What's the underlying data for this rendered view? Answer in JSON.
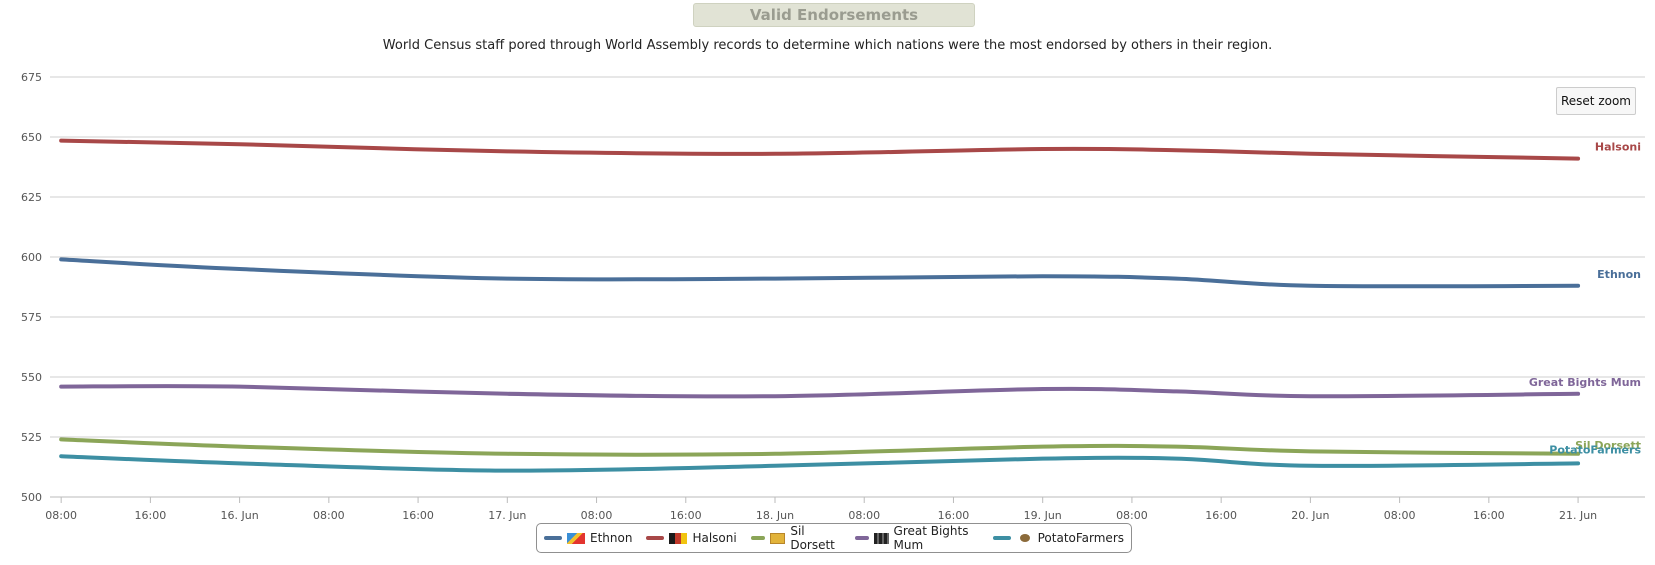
{
  "chart_data": {
    "type": "line",
    "title": "Valid Endorsements",
    "subtitle": "World Census staff pored through World Assembly records to determine which nations were the most endorsed by others in their region.",
    "xlabel": "",
    "ylabel": "",
    "x_tick_labels": [
      "08:00",
      "16:00",
      "16. Jun",
      "08:00",
      "16:00",
      "17. Jun",
      "08:00",
      "16:00",
      "18. Jun",
      "08:00",
      "16:00",
      "19. Jun",
      "08:00",
      "16:00",
      "20. Jun",
      "08:00",
      "16:00",
      "21. Jun"
    ],
    "x": [
      "2024-06-15 08:00",
      "2024-06-16 00:00",
      "2024-06-17 00:00",
      "2024-06-18 00:00",
      "2024-06-19 00:00",
      "2024-06-19 12:00",
      "2024-06-20 00:00",
      "2024-06-21 00:00"
    ],
    "xlim": [
      "2024-06-15 07:00",
      "2024-06-21 06:00"
    ],
    "ylim": [
      500,
      675
    ],
    "y_ticks": [
      500,
      525,
      550,
      575,
      600,
      625,
      650,
      675
    ],
    "grid": true,
    "legend": "bottom",
    "series": [
      {
        "name": "Ethnon",
        "color": "#4a6f99",
        "values": [
          599,
          595,
          591,
          591,
          592,
          591,
          588,
          588
        ]
      },
      {
        "name": "Halsoni",
        "color": "#a84848",
        "values": [
          648.5,
          647,
          644,
          643,
          645,
          644.5,
          643,
          641
        ]
      },
      {
        "name": "Sil Dorsett",
        "color": "#8ba558",
        "values": [
          524,
          521,
          518,
          518,
          521,
          521,
          519,
          518
        ]
      },
      {
        "name": "Great Bights Mum",
        "color": "#7f6699",
        "values": [
          546,
          546,
          543,
          542,
          545,
          544,
          542,
          543
        ]
      },
      {
        "name": "PotatoFarmers",
        "color": "#3d8fa3",
        "values": [
          517,
          514,
          511,
          513,
          516,
          516,
          513,
          514
        ]
      }
    ]
  },
  "reset_zoom_label": "Reset zoom"
}
